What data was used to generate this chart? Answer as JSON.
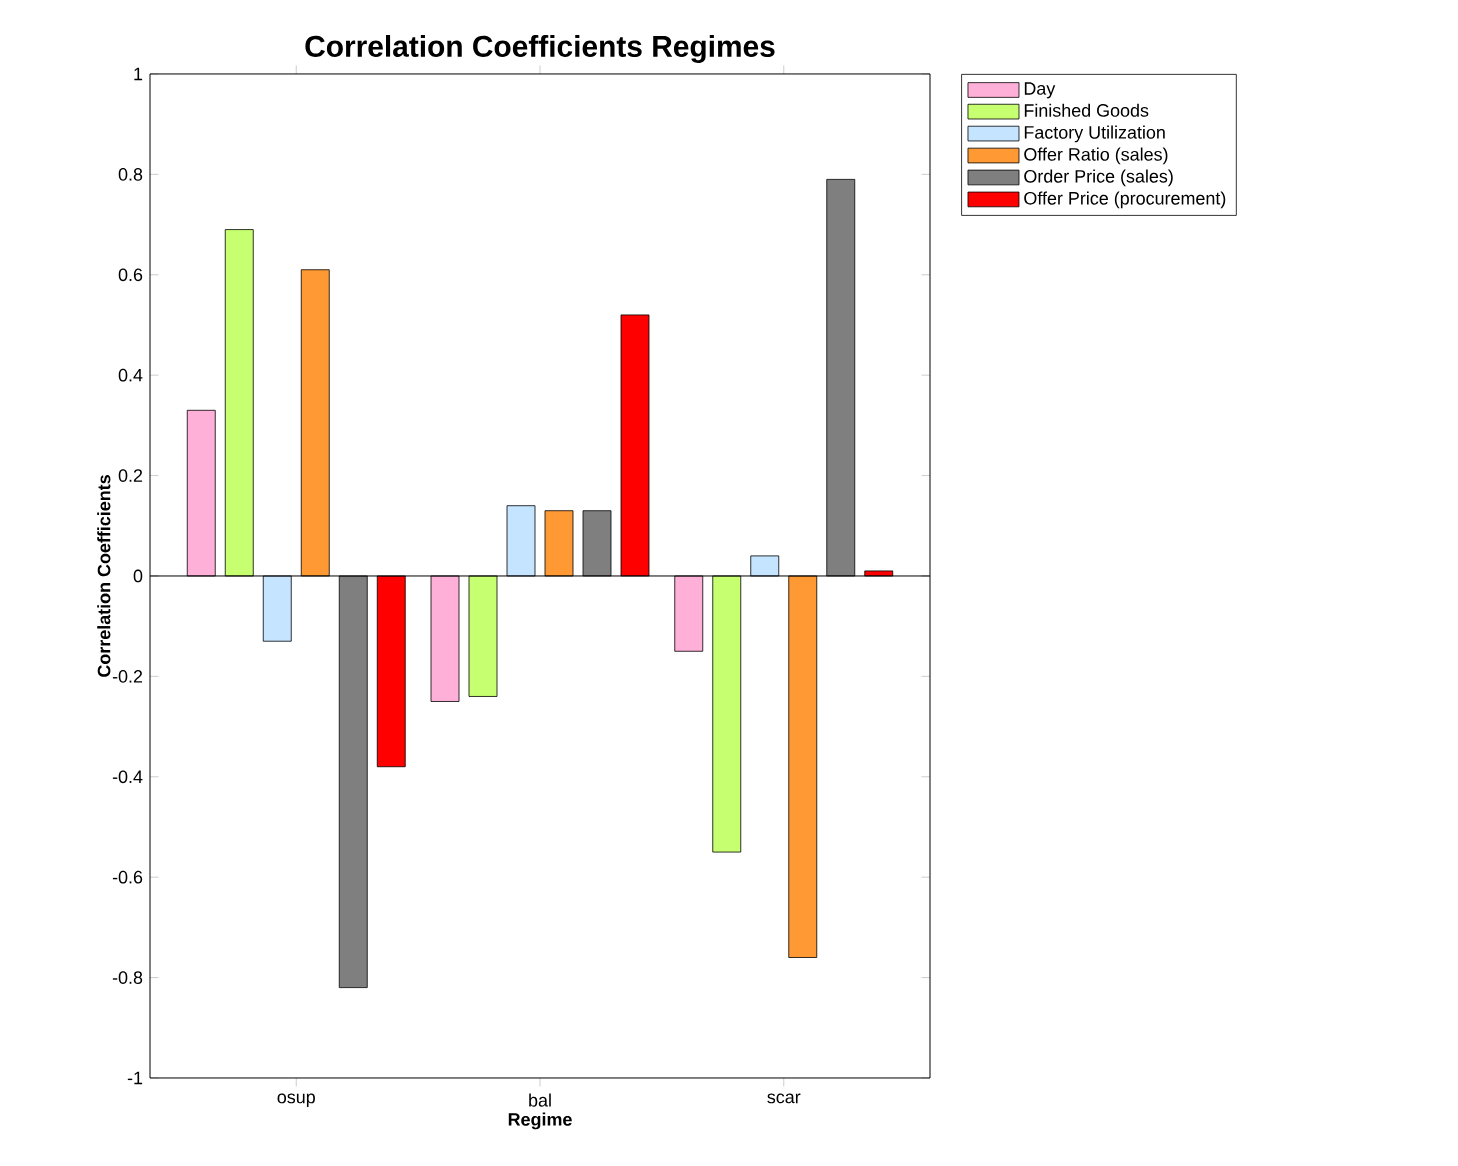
{
  "chart_data": {
    "type": "bar",
    "title": "Correlation Coefficients Regimes",
    "xlabel": "Regime",
    "ylabel": "Correlation Coefficients",
    "categories": [
      "osup",
      "bal",
      "scar"
    ],
    "series": [
      {
        "name": "Day",
        "color": "#ffb0d8",
        "values": [
          0.33,
          -0.25,
          -0.15
        ]
      },
      {
        "name": "Finished Goods",
        "color": "#c6ff70",
        "values": [
          0.69,
          -0.24,
          -0.55
        ]
      },
      {
        "name": "Factory Utilization",
        "color": "#c4e4ff",
        "values": [
          -0.13,
          0.14,
          0.04
        ]
      },
      {
        "name": "Offer Ratio (sales)",
        "color": "#ff9933",
        "values": [
          0.61,
          0.13,
          -0.76
        ]
      },
      {
        "name": "Order Price (sales)",
        "color": "#7f7f7f",
        "values": [
          -0.82,
          0.13,
          0.79
        ]
      },
      {
        "name": "Offer Price (procurement)",
        "color": "#ff0000",
        "values": [
          -0.38,
          0.52,
          0.01
        ]
      }
    ],
    "ylim": [
      -1,
      1
    ],
    "yticks": [
      -1,
      -0.8,
      -0.6,
      -0.4,
      -0.2,
      0,
      0.2,
      0.4,
      0.6,
      0.8,
      1
    ],
    "legend": "top right"
  }
}
